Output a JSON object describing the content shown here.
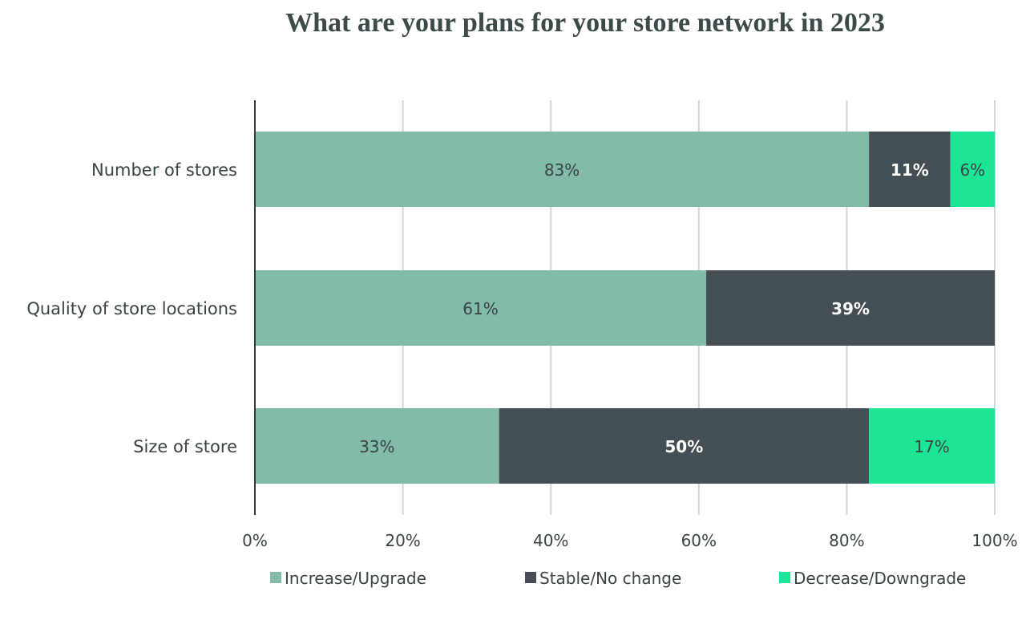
{
  "chart_data": {
    "type": "bar",
    "orientation": "horizontal",
    "stacked": true,
    "title": "What are your plans for your store network in 2023",
    "categories": [
      "Number of stores",
      "Quality of store locations",
      "Size of store"
    ],
    "series": [
      {
        "name": "Increase/Upgrade",
        "values": [
          83,
          61,
          33
        ],
        "labels": [
          "83%",
          "61%",
          "33%"
        ],
        "color": "#82bbaa",
        "label_color": "#3a4444"
      },
      {
        "name": "Stable/No change",
        "values": [
          11,
          39,
          50
        ],
        "labels": [
          "11%",
          "39%",
          "50%"
        ],
        "color": "#434f52",
        "label_color": "#ffffff"
      },
      {
        "name": "Decrease/Downgrade",
        "values": [
          6,
          0,
          17
        ],
        "labels": [
          "6%",
          "",
          "17%"
        ],
        "color": "#1de595",
        "label_color": "#3a4444"
      }
    ],
    "xlim": [
      0,
      100
    ],
    "xticks": [
      "0%",
      "20%",
      "40%",
      "60%",
      "80%",
      "100%"
    ],
    "grid": true,
    "legend": "bottom"
  }
}
